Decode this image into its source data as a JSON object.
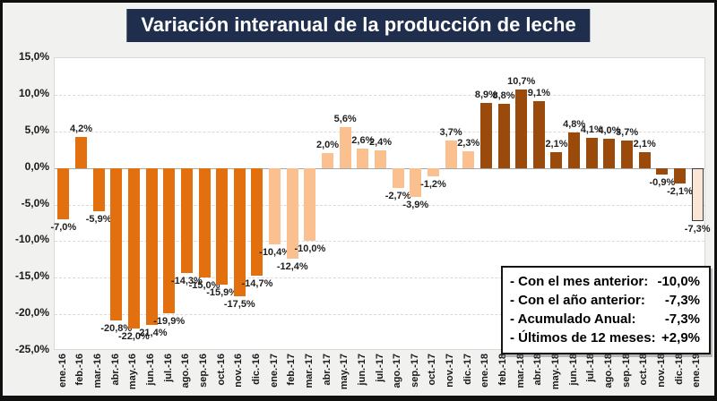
{
  "title": "Variación interanual de la producción de leche",
  "chart_data": {
    "type": "bar",
    "title": "Variación interanual de la producción de leche",
    "categories": [
      "ene.-16",
      "feb.-16",
      "mar.-16",
      "abr.-16",
      "may.-16",
      "jun.-16",
      "jul.-16",
      "ago.-16",
      "sep.-16",
      "oct.-16",
      "nov.-16",
      "dic.-16",
      "ene.-17",
      "feb.-17",
      "mar.-17",
      "abr.-17",
      "may.-17",
      "jun.-17",
      "jul.-17",
      "ago.-17",
      "sep.-17",
      "oct.-17",
      "nov.-17",
      "dic.-17",
      "ene.-18",
      "feb.-18",
      "mar.-18",
      "abr.-18",
      "may.-18",
      "jun.-18",
      "jul.-18",
      "ago.-18",
      "sep.-18",
      "oct.-18",
      "nov.-18",
      "dic.-18",
      "ene.-19"
    ],
    "values": [
      -7.0,
      4.2,
      -5.9,
      -20.8,
      -22.0,
      -21.4,
      -19.9,
      -14.3,
      -15.0,
      -15.9,
      -17.5,
      -14.7,
      -10.4,
      -12.4,
      -10.0,
      2.0,
      5.6,
      2.6,
      2.4,
      -2.7,
      -3.9,
      -1.2,
      3.7,
      2.3,
      8.9,
      8.8,
      10.7,
      9.1,
      2.1,
      4.8,
      4.1,
      4.0,
      3.7,
      2.1,
      -0.9,
      -2.1,
      -7.3
    ],
    "data_labels": [
      "-7,0%",
      "4,2%",
      "-5,9%",
      "-20,8%",
      "-22,0%",
      "-21,4%",
      "-19,9%",
      "-14,3%",
      "-15,0%",
      "-15,9%",
      "-17,5%",
      "-14,7%",
      "-10,4%",
      "-12,4%",
      "-10,0%",
      "2,0%",
      "5,6%",
      "2,6%",
      "2,4%",
      "-2,7%",
      "-3,9%",
      "-1,2%",
      "3,7%",
      "2,3%",
      "8,9%",
      "8,8%",
      "10,7%",
      "9,1%",
      "2,1%",
      "4,8%",
      "4,1%",
      "4,0%",
      "3,7%",
      "2,1%",
      "-0,9%",
      "-2,1%",
      "-7,3%"
    ],
    "ylim": [
      -25,
      15
    ],
    "ytick_step": 5,
    "yticks": [
      "15,0%",
      "10,0%",
      "5,0%",
      "0,0%",
      "-5,0%",
      "-10,0%",
      "-15,0%",
      "-20,0%",
      "-25,0%"
    ],
    "grid": true,
    "legend_position": "none",
    "year_styles": {
      "16": {
        "fill": "#e2700e"
      },
      "17": {
        "fill": "#fac08f"
      },
      "18": {
        "fill": "#9a4a0b"
      },
      "19": {
        "fill": "#fbe5d6",
        "border": "#3a3a3a"
      }
    },
    "colors": {
      "title_background": "#1f2e4c",
      "title_text": "#ffffff",
      "page_background": "#f1f1ef",
      "plot_background": "#ffffff",
      "gridline": "#d9d9d9"
    }
  },
  "summary_box": {
    "rows": [
      {
        "label": "- Con el mes anterior:",
        "value": "-10,0%"
      },
      {
        "label": "- Con el año anterior:",
        "value": "-7,3%"
      },
      {
        "label": "- Acumulado Anual:",
        "value": "-7,3%"
      },
      {
        "label": "- Últimos de 12 meses:",
        "value": "+2,9%"
      }
    ]
  }
}
